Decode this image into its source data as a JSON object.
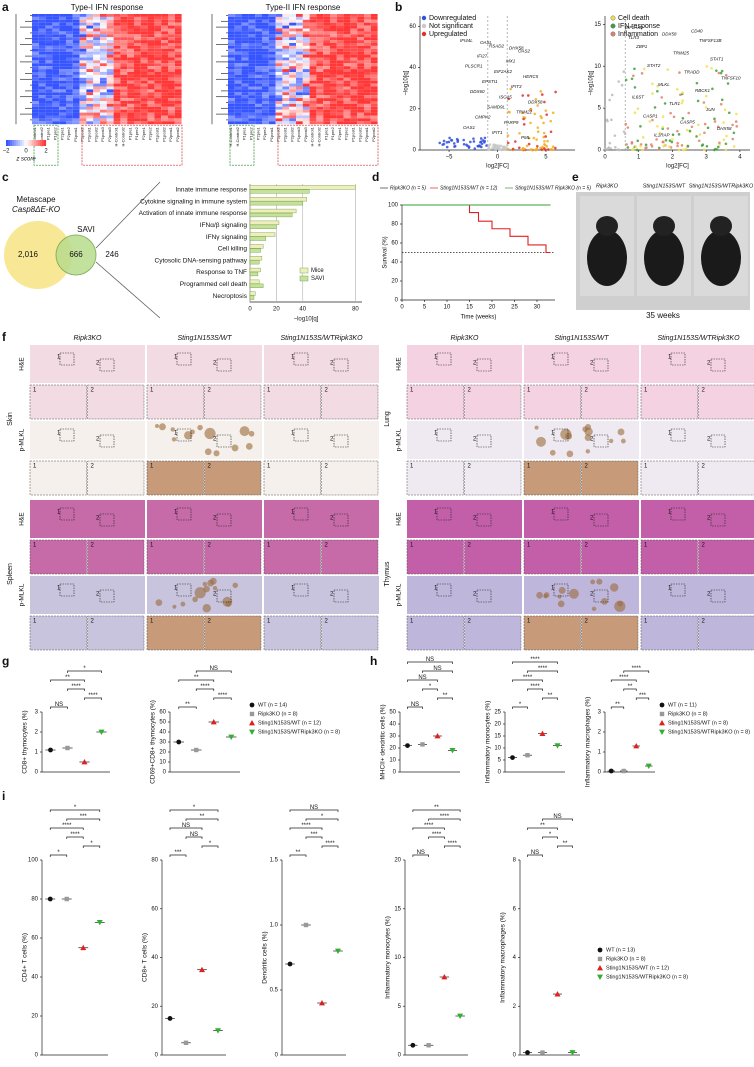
{
  "panel_a": {
    "letter": "a",
    "titles": [
      "Type-I IFN response",
      "Type-II IFN response"
    ],
    "colorbar": {
      "ticks": [
        {
          "value": -2,
          "label": "−2"
        },
        0,
        2
      ],
      "label": "z score"
    },
    "columns": [
      "H-Control1",
      "H-Control2",
      "P1pre1",
      "P1pre2",
      "P2pre1",
      "P2pre2",
      "P1post1",
      "P1post2",
      "P2post1",
      "P2post2",
      "P1post3",
      "P2post3"
    ]
  },
  "panel_b": {
    "letter": "b",
    "left": {
      "legend": [
        "Downregulated",
        "Not significant",
        "Upregulated"
      ],
      "ylabel": "−log10[q]",
      "xlabel": "log2[FC]",
      "yticks": [
        0,
        20,
        40,
        60
      ],
      "xticks": [
        {
          "value": -5,
          "label": "−5"
        },
        0,
        5
      ],
      "genes": [
        "IFI44L",
        "RSAD2",
        "OAS2",
        "IFI27",
        "MX1",
        "PLSCR1",
        "EIF2AK2",
        "HERC5",
        "EPSTI1",
        "IFIT3",
        "DDX60",
        "ISG15",
        "DDX58",
        "SAMD9L",
        "TRIM22",
        "CMPK2",
        "PARP9",
        "OAS1",
        "IFIT1",
        "PML",
        "OASL",
        "DHX58"
      ]
    },
    "right": {
      "legend": [
        "Cell death",
        "IFN response",
        "Inflammation"
      ],
      "ylabel": "−log10[q]",
      "xlabel": "log2[FC]",
      "yticks": [
        0,
        5,
        10,
        15
      ],
      "xticks": [
        0,
        1,
        2,
        3,
        4
      ],
      "genes": [
        "EIF2AK2",
        "DDX58",
        "TNFSF13B",
        "ZBP1",
        "TRIM25",
        "STAT1",
        "STAT2",
        "TRADD",
        "TNFSF10",
        "MLKL",
        "RBCK1",
        "IL6ST",
        "TLR1",
        "JUN",
        "CASP1",
        "CASP5",
        "DHX58",
        "IL1RAP",
        "CD40",
        "TLR3"
      ]
    }
  },
  "panel_c": {
    "letter": "c",
    "venn": {
      "left_title": "Metascape",
      "left_subtitle": "Casp8ΔE-KO",
      "right_title": "SAVI",
      "left_only": "2,016",
      "overlap": "666",
      "right_only": "246"
    },
    "chart": {
      "type": "bar",
      "categories": [
        "Innate immune response",
        "Cytokine signaling in immune system",
        "Activation of innate immune response",
        "IFNα/β signaling",
        "IFNγ signaling",
        "Cell killing",
        "Cytosolic DNA-sensing pathway",
        "Response to TNF",
        "Programmed cell death",
        "Necroptosis"
      ],
      "series": [
        {
          "name": "Mice",
          "color": "#f1eebd",
          "values": [
            80,
            43,
            35,
            22,
            19,
            10,
            9,
            8,
            7,
            4
          ]
        },
        {
          "name": "SAVI",
          "color": "#c5e29d",
          "values": [
            45,
            40,
            32,
            20,
            12,
            8,
            7,
            6,
            10,
            3
          ]
        }
      ],
      "xlim": [
        0,
        85
      ],
      "xticks": [
        0,
        20,
        40,
        80
      ],
      "xlabel": "−log10[q]"
    }
  },
  "panel_d": {
    "letter": "d",
    "chart": {
      "type": "line",
      "ylabel": "Survival (%)",
      "xlabel": "Time (weeks)",
      "ylim": [
        0,
        100
      ],
      "yticks": [
        0,
        20,
        40,
        60,
        80,
        100
      ],
      "xlim": [
        0,
        34
      ],
      "xticks": [
        0,
        5,
        10,
        15,
        20,
        25,
        30
      ],
      "series": [
        {
          "name": "Ripk3KO (n = 5)",
          "color": "#333333",
          "x": [
            0,
            33
          ],
          "values": [
            100,
            100
          ]
        },
        {
          "name": "Sting1N153S/WT (n = 12)",
          "color": "#e02020",
          "x": [
            0,
            15,
            17,
            20,
            24,
            28,
            32,
            33
          ],
          "values": [
            100,
            92,
            83,
            75,
            67,
            58,
            50,
            50
          ]
        },
        {
          "name": "Sting1N153S/WT Ripk3KO (n = 5)",
          "color": "#30a030",
          "x": [
            0,
            33
          ],
          "values": [
            100,
            100
          ]
        }
      ]
    }
  },
  "panel_e": {
    "letter": "e",
    "labels": [
      "Ripk3KO",
      "Sting1N153S/WT",
      "Sting1N153S/WTRipk3KO"
    ],
    "caption": "35 weeks"
  },
  "panel_f": {
    "letter": "f",
    "genotypes": [
      "Ripk3KO",
      "Sting1N153S/WT",
      "Sting1N153S/WTRipk3KO"
    ],
    "tissues": [
      "Skin",
      "Spleen",
      "Lung",
      "Thymus"
    ],
    "stains": [
      "H&E",
      "p-MLKL"
    ],
    "zoom_labels": [
      "1",
      "2"
    ]
  },
  "groups": {
    "g": [
      "WT (n = 14)",
      "Ripk3KO (n = 8)",
      "Sting1N153S/WT (n = 12)",
      "Sting1N153S/WTRipk3KO (n = 8)"
    ],
    "h": [
      "WT (n = 11)",
      "Ripk3KO (n = 8)",
      "Sting1N153S/WT (n = 8)",
      "Sting1N153S/WTRipk3KO (n = 8)"
    ],
    "i": [
      "WT (n = 13)",
      "Ripk3KO (n = 8)",
      "Sting1N153S/WT (n = 12)",
      "Sting1N153S/WTRipk3KO (n = 8)"
    ],
    "colors": [
      "#111111",
      "#999999",
      "#e02020",
      "#30b030"
    ]
  },
  "panel_g": {
    "letter": "g",
    "plots": [
      {
        "type": "dot",
        "ylabel": "CD8+ thymocytes (%)",
        "ylim": [
          0,
          3
        ],
        "yticks": [
          0,
          1,
          2,
          3
        ],
        "values": [
          1.1,
          1.2,
          0.5,
          2.0
        ],
        "stats": [
          "NS",
          "****",
          "****",
          "**",
          "*"
        ]
      },
      {
        "type": "dot",
        "ylabel": "CD69+CD8+ thymocytes (%)",
        "ylim": [
          0,
          60
        ],
        "yticks": [
          0,
          10,
          20,
          30,
          40,
          50,
          60
        ],
        "values": [
          30,
          22,
          50,
          35
        ],
        "stats": [
          "**",
          "****",
          "****",
          "**",
          "NS"
        ]
      }
    ]
  },
  "panel_h": {
    "letter": "h",
    "plots": [
      {
        "type": "dot",
        "ylabel": "MHCII+ dendritic cells (%)",
        "ylim": [
          0,
          50
        ],
        "yticks": [
          0,
          10,
          20,
          30,
          40,
          50
        ],
        "values": [
          22,
          23,
          30,
          18
        ],
        "stats": [
          "NS",
          "**",
          "*",
          "NS",
          "NS",
          "NS"
        ]
      },
      {
        "type": "dot",
        "ylabel": "Inflammatory monocytes (%)",
        "ylim": [
          0,
          25
        ],
        "yticks": [
          0,
          5,
          10,
          15,
          20,
          25
        ],
        "values": [
          6,
          7,
          16,
          11
        ],
        "stats": [
          "*",
          "**",
          "****",
          "****",
          "****",
          "****"
        ]
      },
      {
        "type": "dot",
        "ylabel": "Inflammatory macrophages (%)",
        "ylim": [
          0,
          3
        ],
        "yticks": [
          0,
          1,
          2,
          3
        ],
        "values": [
          0.05,
          0.05,
          1.3,
          0.3
        ],
        "stats": [
          "**",
          "***",
          "**",
          "****",
          "****"
        ]
      }
    ]
  },
  "panel_i": {
    "letter": "i",
    "plots": [
      {
        "type": "dot",
        "ylabel": "CD4+ T cells (%)",
        "ylim": [
          0,
          100
        ],
        "yticks": [
          0,
          20,
          40,
          60,
          80,
          100
        ],
        "values": [
          80,
          80,
          55,
          68
        ],
        "stats": [
          "*",
          "*",
          "****",
          "****",
          "***",
          "*"
        ]
      },
      {
        "type": "dot",
        "ylabel": "CD8+ T cells (%)",
        "ylim": [
          0,
          80
        ],
        "yticks": [
          0,
          20,
          40,
          60,
          80
        ],
        "values": [
          15,
          5,
          35,
          10
        ],
        "stats": [
          "***",
          "*",
          "NS",
          "NS",
          "**",
          "*"
        ]
      },
      {
        "type": "dot",
        "ylabel": "Dendritic cells (%)",
        "ylim": [
          0,
          1.5
        ],
        "yticks": [
          0,
          0.5,
          {
            "value": 1,
            "label": "1.0"
          },
          1.5
        ],
        "values": [
          0.7,
          1.0,
          0.4,
          0.8
        ],
        "stats": [
          "**",
          "****",
          "***",
          "****",
          "*",
          "NS"
        ]
      },
      {
        "type": "dot",
        "ylabel": "Inflammatory monocytes (%)",
        "ylim": [
          0,
          20
        ],
        "yticks": [
          0,
          5,
          10,
          15,
          20
        ],
        "values": [
          1,
          1,
          8,
          4
        ],
        "stats": [
          "NS",
          "****",
          "****",
          "****",
          "****",
          "**"
        ]
      },
      {
        "type": "dot",
        "ylabel": "Inflammatory macrophages (%)",
        "ylim": [
          0,
          8
        ],
        "yticks": [
          0,
          2,
          4,
          6,
          8
        ],
        "values": [
          0.1,
          0.1,
          2.5,
          0.1
        ],
        "stats": [
          "NS",
          "**",
          "*",
          "**",
          "NS"
        ]
      }
    ]
  }
}
